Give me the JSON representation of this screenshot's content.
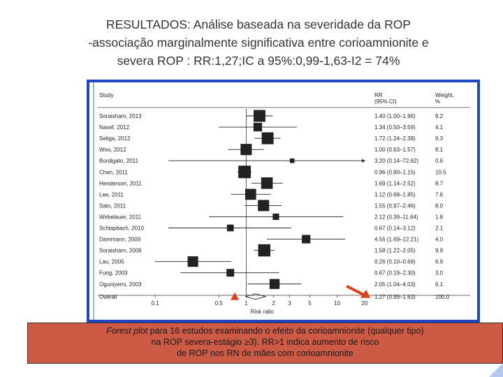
{
  "slide": {
    "title_lines": [
      "RESULTADOS: Análise baseada na severidade da ROP",
      "-associação marginalmente significativa entre corioamnionite e",
      "severa ROP : RR:1,27;IC a 95%:0,99-1,63-I2 = 74%"
    ],
    "caption": {
      "italic_part": "Forest plot",
      "line1_rest": " para 16 estudos examinando o efeito da corioamnionite (qualquer tipo)",
      "line2": "na ROP severa-estágio ≥3). RR>1 indica aumento de risco",
      "line3": "de ROP nos RN de mães com corioamnionite"
    }
  },
  "colors": {
    "frame": "#1f47c4",
    "caption_bg": "#cd5a44",
    "marker": "#222222",
    "arrow_overall": "#e2401b"
  },
  "chart_data": {
    "type": "forest",
    "x_scale": "log",
    "xlim": [
      0.1,
      20
    ],
    "xticks": [
      0.1,
      0.5,
      1,
      2,
      3,
      5,
      10,
      20
    ],
    "xtick_labels": [
      "0.1",
      "0.5",
      "1",
      "2",
      "3",
      "5",
      "10",
      "20"
    ],
    "xlabel": "Risk ratio",
    "reference_line": 1,
    "headers": {
      "study": "Study",
      "rr_line1": "RR",
      "rr_line2": "(95% CI)",
      "weight_line1": "Weight,",
      "weight_line2": "%"
    },
    "studies": [
      {
        "name": "Soraisham, 2013",
        "rr": 1.4,
        "lo": 1.0,
        "hi": 1.96,
        "ci_text": "1.40 (1.00–1.96)",
        "weight": 9.2,
        "weight_text": "9.2"
      },
      {
        "name": "Nasef, 2012",
        "rr": 1.34,
        "lo": 0.5,
        "hi": 3.59,
        "ci_text": "1.34 (0.50–3.59)",
        "weight": 4.1,
        "weight_text": "4.1"
      },
      {
        "name": "Seliga, 2012",
        "rr": 1.72,
        "lo": 1.24,
        "hi": 2.38,
        "ci_text": "1.72 (1.24–2.38)",
        "weight": 9.3,
        "weight_text": "9.3"
      },
      {
        "name": "Woo, 2012",
        "rr": 1.0,
        "lo": 0.63,
        "hi": 1.57,
        "ci_text": "1.00 (0.63–1.57)",
        "weight": 8.1,
        "weight_text": "8.1"
      },
      {
        "name": "Bordigato, 2011",
        "rr": 3.2,
        "lo": 0.14,
        "hi": 72.62,
        "ci_text": "3.20 (0.14–72.62)",
        "weight": 0.6,
        "weight_text": "0.6"
      },
      {
        "name": "Chen, 2011",
        "rr": 0.96,
        "lo": 0.8,
        "hi": 1.15,
        "ci_text": "0.96 (0.80–1.15)",
        "weight": 10.5,
        "weight_text": "10.5"
      },
      {
        "name": "Henderson, 2011",
        "rr": 1.69,
        "lo": 1.14,
        "hi": 2.52,
        "ci_text": "1.69 (1.14–2.52)",
        "weight": 8.7,
        "weight_text": "8.7"
      },
      {
        "name": "Lee, 2011",
        "rr": 1.12,
        "lo": 0.68,
        "hi": 1.85,
        "ci_text": "1.12 (0.68–1.85)",
        "weight": 7.6,
        "weight_text": "7.6"
      },
      {
        "name": "Sato, 2011",
        "rr": 1.55,
        "lo": 0.97,
        "hi": 2.46,
        "ci_text": "1.55 (0.97–2.46)",
        "weight": 8.0,
        "weight_text": "8.0"
      },
      {
        "name": "Wirbelauer, 2011",
        "rr": 2.12,
        "lo": 0.39,
        "hi": 11.64,
        "ci_text": "2.12 (0.39–11.64)",
        "weight": 1.8,
        "weight_text": "1.8"
      },
      {
        "name": "Schlapbach, 2010",
        "rr": 0.67,
        "lo": 0.14,
        "hi": 3.12,
        "ci_text": "0.67 (0.14–3.12)",
        "weight": 2.1,
        "weight_text": "2.1"
      },
      {
        "name": "Dammann, 2009",
        "rr": 4.55,
        "lo": 1.69,
        "hi": 12.21,
        "ci_text": "4.55 (1.69–12.21)",
        "weight": 4.0,
        "weight_text": "4.0"
      },
      {
        "name": "Soraisham, 2009",
        "rr": 1.58,
        "lo": 1.22,
        "hi": 2.05,
        "ci_text": "1.58 (1.22–2.05)",
        "weight": 9.9,
        "weight_text": "9.9"
      },
      {
        "name": "Lau, 2005",
        "rr": 0.26,
        "lo": 0.1,
        "hi": 0.69,
        "ci_text": "0.26 (0.10–0.69)",
        "weight": 6.9,
        "weight_text": "6.9"
      },
      {
        "name": "Fung, 2003",
        "rr": 0.67,
        "lo": 0.19,
        "hi": 2.3,
        "ci_text": "0.67 (0.19–2.30)",
        "weight": 3.0,
        "weight_text": "3.0"
      },
      {
        "name": "Oguniyemi, 2003",
        "rr": 2.05,
        "lo": 1.04,
        "hi": 4.03,
        "ci_text": "2.05 (1.04–4.03)",
        "weight": 6.1,
        "weight_text": "6.1"
      }
    ],
    "overall": {
      "name": "Overall",
      "rr": 1.27,
      "lo": 0.99,
      "hi": 1.63,
      "ci_text": "1.27 (0.99–1.63)",
      "weight": 100.0,
      "weight_text": "100.0"
    }
  }
}
